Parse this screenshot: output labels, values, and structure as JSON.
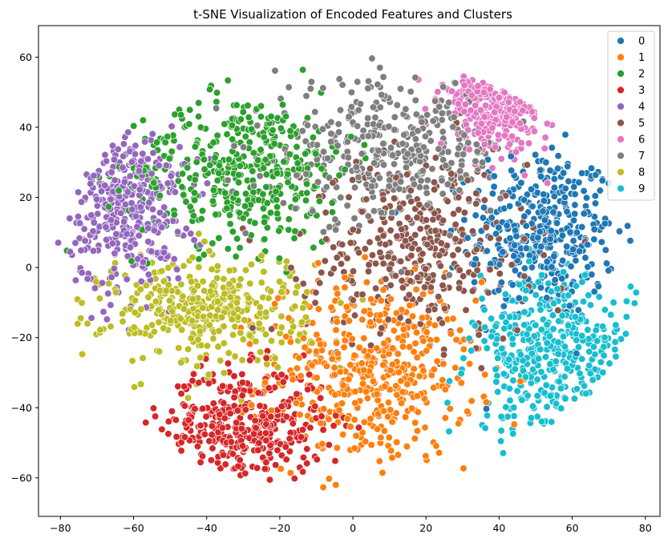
{
  "chart_data": {
    "type": "scatter",
    "title": "t-SNE Visualization of Encoded Features and Clusters",
    "xlabel": "",
    "ylabel": "",
    "xlim": [
      -86,
      84
    ],
    "ylim": [
      -71,
      69
    ],
    "xticks": [
      -80,
      -60,
      -40,
      -20,
      0,
      20,
      40,
      60,
      80
    ],
    "yticks": [
      -60,
      -40,
      -20,
      0,
      20,
      40,
      60
    ],
    "legend_position": "top-right",
    "grid": false,
    "series": [
      {
        "name": "0",
        "color": "#1f77b4",
        "center": [
          52,
          10
        ],
        "spread": [
          10,
          12
        ],
        "n": 380
      },
      {
        "name": "1",
        "color": "#ff7f0e",
        "center": [
          5,
          -30
        ],
        "spread": [
          14,
          13
        ],
        "n": 480
      },
      {
        "name": "2",
        "color": "#2ca02c",
        "center": [
          -30,
          28
        ],
        "spread": [
          15,
          11
        ],
        "n": 430
      },
      {
        "name": "3",
        "color": "#d62728",
        "center": [
          -30,
          -45
        ],
        "spread": [
          11,
          8
        ],
        "n": 380
      },
      {
        "name": "4",
        "color": "#9467bd",
        "center": [
          -62,
          17
        ],
        "spread": [
          8,
          12
        ],
        "n": 380
      },
      {
        "name": "5",
        "color": "#8c564b",
        "center": [
          18,
          5
        ],
        "spread": [
          15,
          13
        ],
        "n": 380
      },
      {
        "name": "6",
        "color": "#e377c2",
        "center": [
          40,
          48
        ],
        "spread": [
          8,
          7
        ],
        "n": 260
      },
      {
        "name": "7",
        "color": "#7f7f7f",
        "center": [
          10,
          33
        ],
        "spread": [
          16,
          10
        ],
        "n": 380
      },
      {
        "name": "8",
        "color": "#bcbd22",
        "center": [
          -40,
          -12
        ],
        "spread": [
          14,
          8
        ],
        "n": 380
      },
      {
        "name": "9",
        "color": "#17becf",
        "center": [
          55,
          -25
        ],
        "spread": [
          11,
          11
        ],
        "n": 420
      }
    ]
  }
}
